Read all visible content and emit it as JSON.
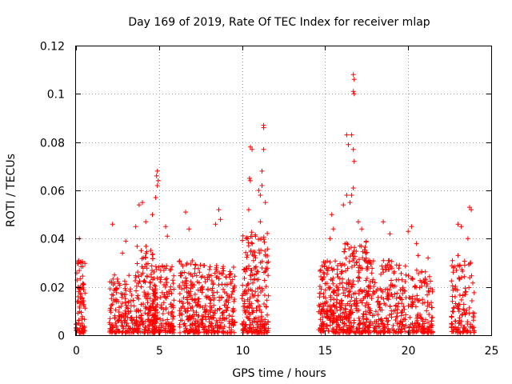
{
  "chart_data": {
    "type": "scatter",
    "title": "Day 169 of 2019, Rate Of TEC Index for receiver mlap",
    "xlabel": "GPS time / hours",
    "ylabel": "ROTI / TECUs",
    "xlim": [
      0,
      25
    ],
    "ylim": [
      0,
      0.12
    ],
    "grid": true,
    "legend": "none",
    "x_ticks": [
      0,
      5,
      10,
      15,
      20,
      25
    ],
    "x_tick_labels": [
      "0",
      "5",
      "10",
      "15",
      "20",
      "25"
    ],
    "y_ticks": [
      0,
      0.02,
      0.04,
      0.06,
      0.08,
      0.1,
      0.12
    ],
    "y_tick_labels": [
      "0",
      "0.02",
      "0.04",
      "0.06",
      "0.08",
      "0.1",
      "0.12"
    ],
    "marker": "+",
    "color": "#ff0000",
    "series": [
      {
        "name": "ROTI",
        "clusters": [
          {
            "x_range": [
              0.0,
              0.55
            ],
            "y_max": 0.03,
            "count": 90
          },
          {
            "x_range": [
              2.0,
              3.6
            ],
            "y_max": 0.024,
            "count": 160
          },
          {
            "x_range": [
              3.6,
              4.8
            ],
            "y_max": 0.036,
            "count": 170
          },
          {
            "x_range": [
              4.6,
              5.9
            ],
            "y_max": 0.028,
            "count": 170
          },
          {
            "x_range": [
              6.2,
              7.6
            ],
            "y_max": 0.03,
            "count": 180
          },
          {
            "x_range": [
              7.6,
              9.6
            ],
            "y_max": 0.028,
            "count": 220
          },
          {
            "x_range": [
              10.0,
              11.6
            ],
            "y_max": 0.042,
            "count": 240
          },
          {
            "x_range": [
              14.6,
              16.0
            ],
            "y_max": 0.03,
            "count": 200
          },
          {
            "x_range": [
              16.0,
              17.6
            ],
            "y_max": 0.038,
            "count": 240
          },
          {
            "x_range": [
              17.6,
              19.9
            ],
            "y_max": 0.03,
            "count": 230
          },
          {
            "x_range": [
              20.0,
              21.5
            ],
            "y_max": 0.026,
            "count": 140
          },
          {
            "x_range": [
              22.6,
              24.0
            ],
            "y_max": 0.03,
            "count": 130
          }
        ],
        "outliers": [
          {
            "x": 0.2,
            "y": 0.04
          },
          {
            "x": 0.3,
            "y": 0.03
          },
          {
            "x": 2.2,
            "y": 0.046
          },
          {
            "x": 2.8,
            "y": 0.034
          },
          {
            "x": 3.0,
            "y": 0.039
          },
          {
            "x": 3.6,
            "y": 0.045
          },
          {
            "x": 3.8,
            "y": 0.054
          },
          {
            "x": 4.0,
            "y": 0.055
          },
          {
            "x": 4.2,
            "y": 0.047
          },
          {
            "x": 4.6,
            "y": 0.05
          },
          {
            "x": 4.9,
            "y": 0.068
          },
          {
            "x": 4.85,
            "y": 0.066
          },
          {
            "x": 4.95,
            "y": 0.064
          },
          {
            "x": 4.9,
            "y": 0.062
          },
          {
            "x": 4.8,
            "y": 0.057
          },
          {
            "x": 5.4,
            "y": 0.045
          },
          {
            "x": 5.5,
            "y": 0.041
          },
          {
            "x": 6.6,
            "y": 0.051
          },
          {
            "x": 6.8,
            "y": 0.044
          },
          {
            "x": 8.4,
            "y": 0.046
          },
          {
            "x": 8.6,
            "y": 0.052
          },
          {
            "x": 8.7,
            "y": 0.048
          },
          {
            "x": 10.5,
            "y": 0.078
          },
          {
            "x": 10.6,
            "y": 0.077
          },
          {
            "x": 10.45,
            "y": 0.065
          },
          {
            "x": 10.5,
            "y": 0.064
          },
          {
            "x": 10.4,
            "y": 0.052
          },
          {
            "x": 11.0,
            "y": 0.06
          },
          {
            "x": 11.1,
            "y": 0.058
          },
          {
            "x": 11.2,
            "y": 0.062
          },
          {
            "x": 11.3,
            "y": 0.087
          },
          {
            "x": 11.3,
            "y": 0.086
          },
          {
            "x": 11.3,
            "y": 0.077
          },
          {
            "x": 11.2,
            "y": 0.068
          },
          {
            "x": 11.4,
            "y": 0.055
          },
          {
            "x": 11.1,
            "y": 0.047
          },
          {
            "x": 15.4,
            "y": 0.05
          },
          {
            "x": 15.5,
            "y": 0.044
          },
          {
            "x": 15.3,
            "y": 0.04
          },
          {
            "x": 16.3,
            "y": 0.083
          },
          {
            "x": 16.4,
            "y": 0.079
          },
          {
            "x": 16.7,
            "y": 0.108
          },
          {
            "x": 16.75,
            "y": 0.106
          },
          {
            "x": 16.7,
            "y": 0.101
          },
          {
            "x": 16.75,
            "y": 0.1
          },
          {
            "x": 16.6,
            "y": 0.083
          },
          {
            "x": 16.7,
            "y": 0.077
          },
          {
            "x": 16.75,
            "y": 0.072
          },
          {
            "x": 16.7,
            "y": 0.061
          },
          {
            "x": 16.6,
            "y": 0.058
          },
          {
            "x": 16.5,
            "y": 0.055
          },
          {
            "x": 16.3,
            "y": 0.058
          },
          {
            "x": 16.1,
            "y": 0.054
          },
          {
            "x": 17.0,
            "y": 0.047
          },
          {
            "x": 17.2,
            "y": 0.044
          },
          {
            "x": 18.5,
            "y": 0.047
          },
          {
            "x": 18.9,
            "y": 0.042
          },
          {
            "x": 20.2,
            "y": 0.045
          },
          {
            "x": 20.0,
            "y": 0.043
          },
          {
            "x": 20.5,
            "y": 0.038
          },
          {
            "x": 20.6,
            "y": 0.033
          },
          {
            "x": 21.2,
            "y": 0.032
          },
          {
            "x": 23.0,
            "y": 0.046
          },
          {
            "x": 23.2,
            "y": 0.045
          },
          {
            "x": 23.7,
            "y": 0.053
          },
          {
            "x": 23.8,
            "y": 0.052
          },
          {
            "x": 23.6,
            "y": 0.04
          },
          {
            "x": 23.0,
            "y": 0.033
          }
        ]
      }
    ]
  }
}
